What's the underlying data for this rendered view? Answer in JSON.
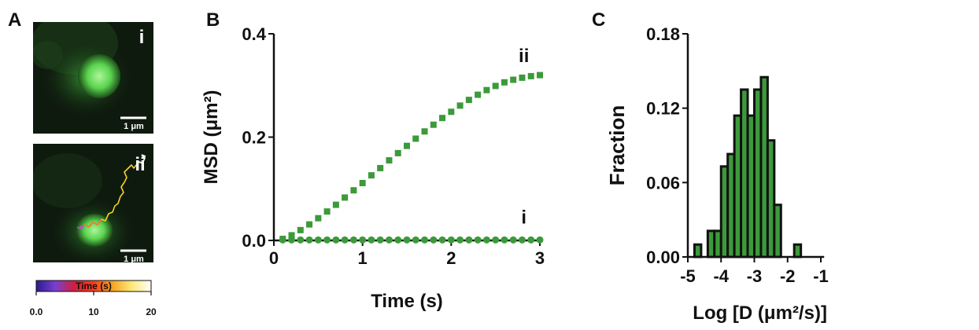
{
  "panel_labels": {
    "a": "A",
    "b": "B",
    "c": "C"
  },
  "panel_a": {
    "image_i_label": "i",
    "image_ii_label": "ii",
    "scalebar_label": "1 μm",
    "colorbar": {
      "title": "Time (s)",
      "ticks": [
        "0.0",
        "10",
        "20"
      ],
      "colors": [
        "#2b1b8f",
        "#7a3fd0",
        "#d21f3c",
        "#ff3b1a",
        "#f5a623",
        "#ffe97a",
        "#ffffff"
      ]
    },
    "colors": {
      "cell": "#5bd44f",
      "background": "#0e1a0e"
    }
  },
  "chart_data": [
    {
      "type": "scatter",
      "panel": "B",
      "xlabel": "Time (s)",
      "ylabel": "MSD (μm²)",
      "xlim": [
        0,
        3
      ],
      "ylim": [
        0,
        0.4
      ],
      "xticks": [
        "0",
        "1",
        "2",
        "3"
      ],
      "yticks": [
        "0.0",
        "0.2",
        "0.4"
      ],
      "color": "#3c9a3a",
      "series": [
        {
          "name": "ii",
          "marker": "square",
          "x": [
            0.1,
            0.2,
            0.3,
            0.4,
            0.5,
            0.6,
            0.7,
            0.8,
            0.9,
            1.0,
            1.1,
            1.2,
            1.3,
            1.4,
            1.5,
            1.6,
            1.7,
            1.8,
            1.9,
            2.0,
            2.1,
            2.2,
            2.3,
            2.4,
            2.5,
            2.6,
            2.7,
            2.8,
            2.9,
            3.0
          ],
          "y": [
            0.003,
            0.01,
            0.02,
            0.031,
            0.043,
            0.056,
            0.069,
            0.083,
            0.097,
            0.111,
            0.126,
            0.14,
            0.155,
            0.169,
            0.183,
            0.197,
            0.211,
            0.224,
            0.237,
            0.249,
            0.261,
            0.272,
            0.282,
            0.291,
            0.299,
            0.306,
            0.311,
            0.315,
            0.318,
            0.32
          ]
        },
        {
          "name": "i",
          "marker": "circle",
          "x": [
            0.1,
            0.2,
            0.3,
            0.4,
            0.5,
            0.6,
            0.7,
            0.8,
            0.9,
            1.0,
            1.1,
            1.2,
            1.3,
            1.4,
            1.5,
            1.6,
            1.7,
            1.8,
            1.9,
            2.0,
            2.1,
            2.2,
            2.3,
            2.4,
            2.5,
            2.6,
            2.7,
            2.8,
            2.9,
            3.0
          ],
          "y": [
            0.001,
            0.001,
            0.001,
            0.001,
            0.001,
            0.001,
            0.001,
            0.001,
            0.001,
            0.001,
            0.001,
            0.001,
            0.001,
            0.001,
            0.001,
            0.001,
            0.001,
            0.001,
            0.001,
            0.001,
            0.001,
            0.001,
            0.001,
            0.001,
            0.001,
            0.001,
            0.001,
            0.001,
            0.001,
            0.001
          ]
        }
      ],
      "annotations": [
        {
          "text": "ii",
          "x": 2.82,
          "y": 0.345
        },
        {
          "text": "i",
          "x": 2.82,
          "y": 0.033
        }
      ]
    },
    {
      "type": "bar",
      "panel": "C",
      "xlabel": "Log [D (μm²/s)]",
      "ylabel": "Fraction",
      "xlim": [
        -5,
        -0.9
      ],
      "ylim": [
        0,
        0.18
      ],
      "xticks": [
        "-5",
        "-4",
        "-3",
        "-2",
        "-1"
      ],
      "xtick_values": [
        -5,
        -4,
        -3,
        -2,
        -1
      ],
      "yticks": [
        "0.00",
        "0.06",
        "0.12",
        "0.18"
      ],
      "bin_width": 0.2,
      "bin_centers": [
        -4.7,
        -4.5,
        -4.3,
        -4.1,
        -3.9,
        -3.7,
        -3.5,
        -3.3,
        -3.1,
        -2.9,
        -2.7,
        -2.5,
        -2.3,
        -2.1,
        -1.9,
        -1.7,
        -1.5,
        -1.3,
        -1.1,
        -0.9
      ],
      "values": [
        0.01,
        0.0,
        0.021,
        0.021,
        0.073,
        0.083,
        0.114,
        0.135,
        0.114,
        0.135,
        0.145,
        0.094,
        0.042,
        0.0,
        0.0,
        0.01,
        0.0,
        0.0,
        0.0,
        0.0
      ],
      "color": "#3c9a3a"
    }
  ]
}
